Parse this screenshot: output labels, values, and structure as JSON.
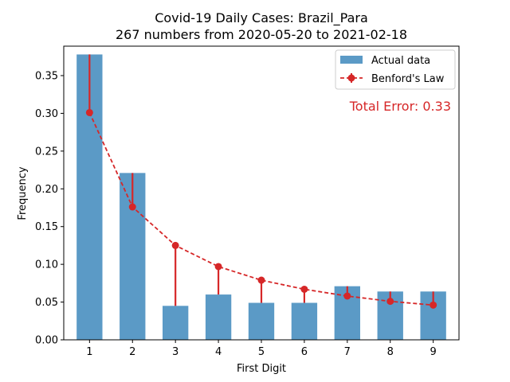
{
  "chart_data": {
    "type": "bar",
    "title_line1": "Covid-19 Daily Cases: Brazil_Para",
    "title_line2": "267 numbers from 2020-05-20 to 2021-02-18",
    "xlabel": "First Digit",
    "ylabel": "Frequency",
    "categories": [
      1,
      2,
      3,
      4,
      5,
      6,
      7,
      8,
      9
    ],
    "ylim": [
      0,
      0.389
    ],
    "yticks": [
      0.0,
      0.05,
      0.1,
      0.15,
      0.2,
      0.25,
      0.3,
      0.35
    ],
    "ytick_labels": [
      "0.00",
      "0.05",
      "0.10",
      "0.15",
      "0.20",
      "0.25",
      "0.30",
      "0.35"
    ],
    "grid": false,
    "legend_position": "top-right",
    "series": [
      {
        "name": "Actual data",
        "kind": "bar",
        "color": "#5b9ac6",
        "values": [
          0.378,
          0.221,
          0.045,
          0.06,
          0.049,
          0.049,
          0.071,
          0.064,
          0.064
        ]
      },
      {
        "name": "Benford's Law",
        "kind": "line-errorbar",
        "color": "#d62728",
        "values": [
          0.301,
          0.176,
          0.125,
          0.097,
          0.079,
          0.067,
          0.058,
          0.051,
          0.046
        ]
      }
    ],
    "annotation": "Total Error: 0.33",
    "annotation_color": "#d62728"
  }
}
